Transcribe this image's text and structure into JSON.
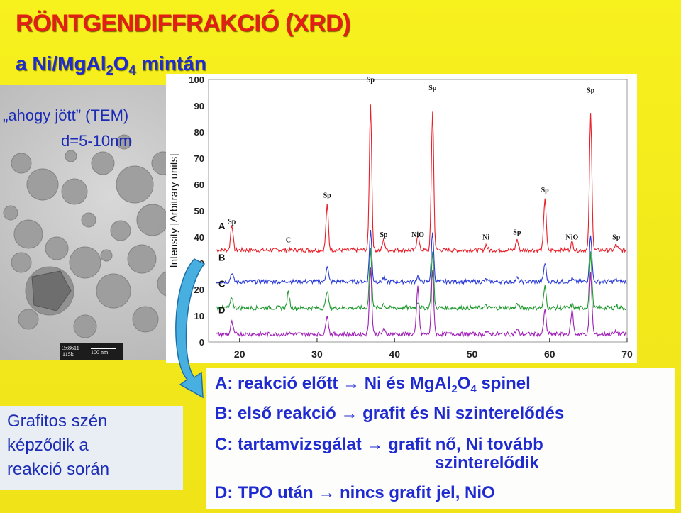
{
  "title": "RÖNTGENDIFFRAKCIÓ (XRD)",
  "subtitle": {
    "prefix": "a Ni/MgAl",
    "sub1": "2",
    "mid": "O",
    "sub2": "4",
    "suffix": " mintán"
  },
  "tem": {
    "label_line1": "„ahogy jött” (TEM)",
    "label_line2": "d=5-10nm",
    "scale_code1": "3x8611",
    "scale_code2": "115k",
    "scale_text": "100 nm"
  },
  "side_text": [
    "Grafitos szén",
    "képződik a",
    "reakció során"
  ],
  "info": {
    "a": {
      "text1": "A: reakció előtt → Ni és MgAl",
      "sub1": "2",
      "text2": "O",
      "sub2": "4",
      "text3": " spinel"
    },
    "b": "B: első reakció → grafit és Ni szinterelődés",
    "c1": "C: tartamvizsgálat → grafit nő, Ni tovább",
    "c2": "szinterelődik",
    "d": "D: TPO után → nincs grafit jel, NiO"
  },
  "chart_data": {
    "type": "line",
    "ylabel": "Intensity [Arbitrary units]",
    "xlim": [
      16,
      70
    ],
    "ylim": [
      0,
      100
    ],
    "x_ticks": [
      "20",
      "30",
      "40",
      "50",
      "60",
      "70"
    ],
    "y_ticks": [
      "0",
      "10",
      "20",
      "30",
      "40",
      "50",
      "60",
      "70",
      "80",
      "90",
      "100"
    ],
    "series": [
      {
        "name": "A",
        "color": "#e8202a",
        "baseline": 35
      },
      {
        "name": "B",
        "color": "#2a3bd8",
        "baseline": 23
      },
      {
        "name": "C",
        "color": "#1f9a2e",
        "baseline": 13
      },
      {
        "name": "D",
        "color": "#a020b8",
        "baseline": 3
      }
    ],
    "peaks": [
      {
        "x": 19.0,
        "h": 10
      },
      {
        "x": 26.3,
        "h": 1
      },
      {
        "x": 31.3,
        "h": 17
      },
      {
        "x": 36.9,
        "h": 56
      },
      {
        "x": 38.6,
        "h": 4
      },
      {
        "x": 43.0,
        "h": 6
      },
      {
        "x": 44.9,
        "h": 53
      },
      {
        "x": 51.8,
        "h": 2
      },
      {
        "x": 55.8,
        "h": 4
      },
      {
        "x": 59.4,
        "h": 20
      },
      {
        "x": 62.9,
        "h": 3
      },
      {
        "x": 65.3,
        "h": 52
      },
      {
        "x": 68.6,
        "h": 2
      }
    ],
    "peak_labels": [
      {
        "text": "Sp",
        "x": 19.0,
        "y": 45
      },
      {
        "text": "C",
        "x": 26.3,
        "y": 38
      },
      {
        "text": "Sp",
        "x": 31.3,
        "y": 55
      },
      {
        "text": "Sp",
        "x": 36.9,
        "y": 99
      },
      {
        "text": "Sp",
        "x": 38.6,
        "y": 40
      },
      {
        "text": "NiO",
        "x": 43.0,
        "y": 40
      },
      {
        "text": "Sp",
        "x": 44.9,
        "y": 96
      },
      {
        "text": "Ni",
        "x": 51.8,
        "y": 39
      },
      {
        "text": "Sp",
        "x": 55.8,
        "y": 41
      },
      {
        "text": "Sp",
        "x": 59.4,
        "y": 57
      },
      {
        "text": "NiO",
        "x": 62.9,
        "y": 39
      },
      {
        "text": "Sp",
        "x": 65.3,
        "y": 95
      },
      {
        "text": "Sp",
        "x": 68.6,
        "y": 39
      }
    ]
  }
}
